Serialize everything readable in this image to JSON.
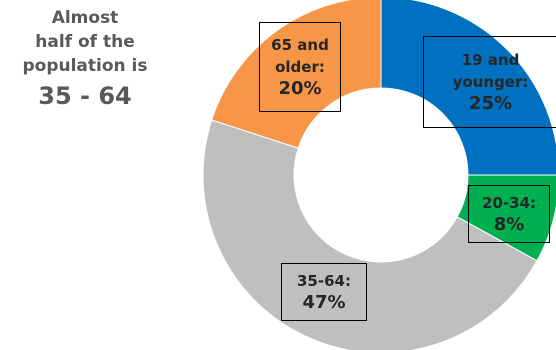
{
  "callout": {
    "line1": "Almost",
    "line2": "half of the",
    "line3": "population is",
    "highlight": "35 - 64"
  },
  "chart_data": {
    "type": "pie",
    "donut": true,
    "start_angle_deg": 0,
    "direction": "clockwise",
    "slices": [
      {
        "label": "19 and younger:",
        "value": 25,
        "value_label": "25%",
        "color": "#0070C0"
      },
      {
        "label": "20-34:",
        "value": 8,
        "value_label": "8%",
        "color": "#00B050"
      },
      {
        "label": "35-64:",
        "value": 47,
        "value_label": "47%",
        "color": "#BFBFBF"
      },
      {
        "label": "65 and older:",
        "value": 20,
        "value_label": "20%",
        "color": "#F79646"
      }
    ]
  }
}
